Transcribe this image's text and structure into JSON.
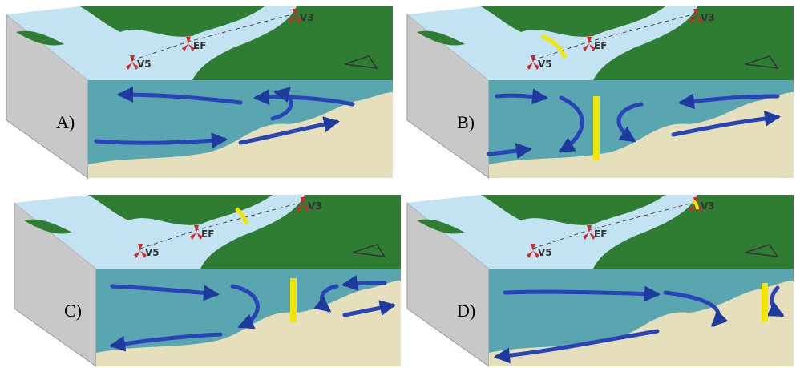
{
  "panels": [
    {
      "label": "A)",
      "stations": [
        "V5",
        "EF",
        "V3"
      ]
    },
    {
      "label": "B)",
      "stations": [
        "V5",
        "EF",
        "V3"
      ]
    },
    {
      "label": "C)",
      "stations": [
        "V5",
        "EF",
        "V3"
      ]
    },
    {
      "label": "D)",
      "stations": [
        "V5",
        "EF",
        "V3"
      ]
    }
  ]
}
